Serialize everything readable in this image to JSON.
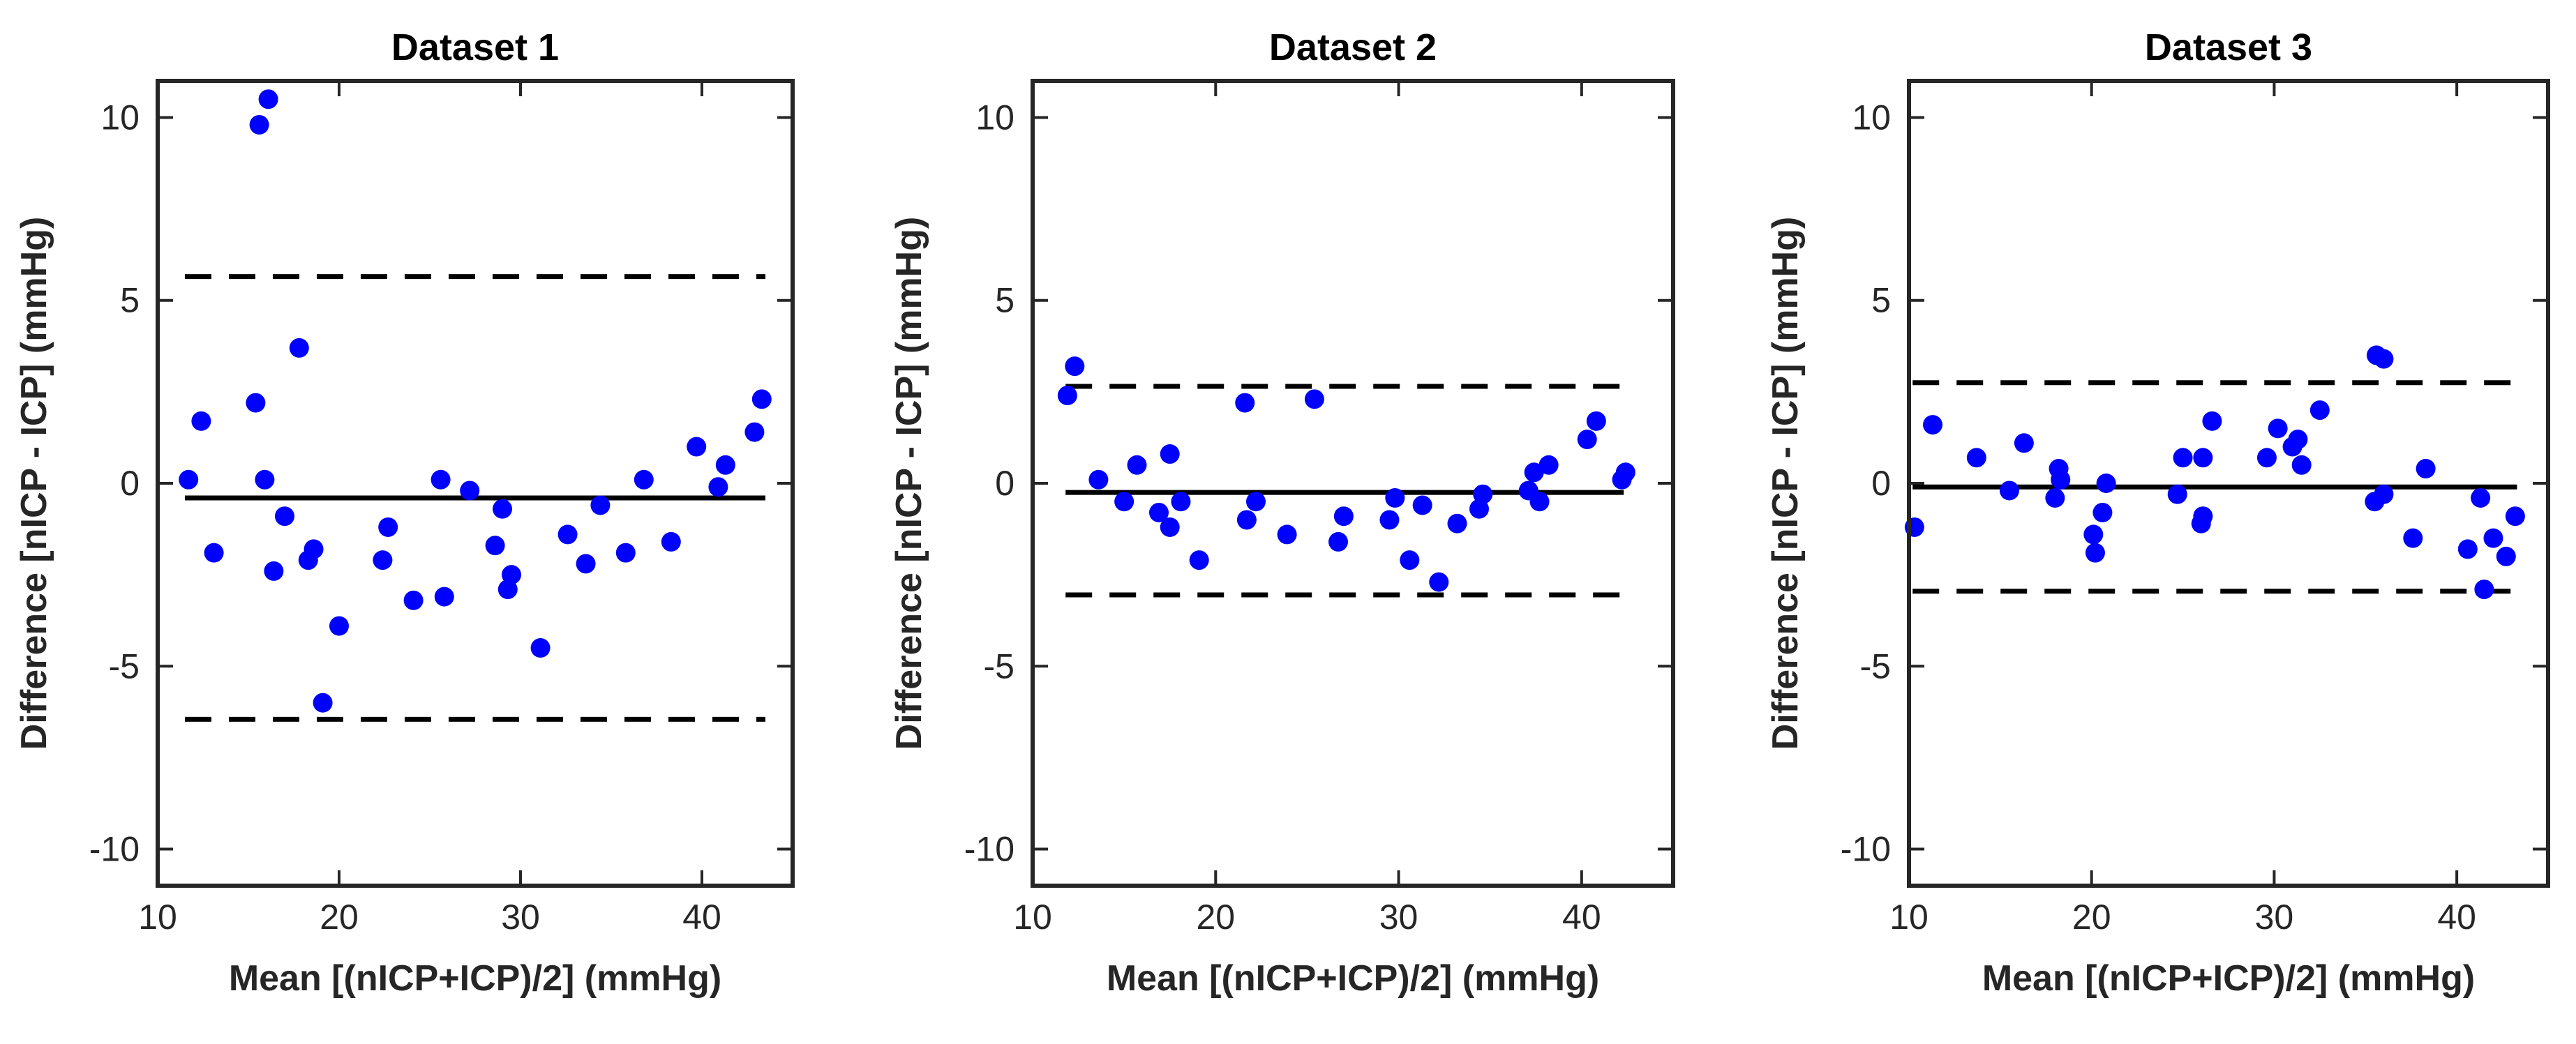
{
  "chart_data": [
    {
      "type": "scatter",
      "title": "Dataset 1",
      "xlabel": "Mean [(nICP+ICP)/2] (mmHg)",
      "ylabel": "Difference [nICP - ICP] (mmHg)",
      "xlim": [
        10,
        45
      ],
      "ylim": [
        -11,
        11
      ],
      "xticks": [
        10,
        20,
        30,
        40
      ],
      "yticks": [
        -10,
        -5,
        0,
        5,
        10
      ],
      "xtick_labels": [
        "10",
        "20",
        "30",
        "40"
      ],
      "ytick_labels": [
        "-10",
        "-5",
        "0",
        "5",
        "10"
      ],
      "mean_bias": {
        "value": -0.4,
        "x_range": [
          11.5,
          43.5
        ]
      },
      "limits_of_agreement": [
        {
          "value": 5.65,
          "x_range": [
            11.5,
            43.5
          ]
        },
        {
          "value": -6.45,
          "x_range": [
            11.5,
            43.5
          ]
        }
      ],
      "marker_color": "#0000ff",
      "points": [
        {
          "x": 11.7,
          "y": 0.1
        },
        {
          "x": 12.4,
          "y": 1.7
        },
        {
          "x": 13.1,
          "y": -1.9
        },
        {
          "x": 15.6,
          "y": 9.8
        },
        {
          "x": 16.1,
          "y": 10.5
        },
        {
          "x": 15.4,
          "y": 2.2
        },
        {
          "x": 15.9,
          "y": 0.1
        },
        {
          "x": 16.4,
          "y": -2.4
        },
        {
          "x": 17.0,
          "y": -0.9
        },
        {
          "x": 17.8,
          "y": 3.7
        },
        {
          "x": 18.3,
          "y": -2.1
        },
        {
          "x": 18.6,
          "y": -1.8
        },
        {
          "x": 19.1,
          "y": -6.0
        },
        {
          "x": 20.0,
          "y": -3.9
        },
        {
          "x": 22.4,
          "y": -2.1
        },
        {
          "x": 22.7,
          "y": -1.2
        },
        {
          "x": 24.1,
          "y": -3.2
        },
        {
          "x": 25.6,
          "y": 0.1
        },
        {
          "x": 25.8,
          "y": -3.1
        },
        {
          "x": 27.2,
          "y": -0.2
        },
        {
          "x": 28.6,
          "y": -1.7
        },
        {
          "x": 29.0,
          "y": -0.7
        },
        {
          "x": 29.3,
          "y": -2.9
        },
        {
          "x": 29.5,
          "y": -2.5
        },
        {
          "x": 31.1,
          "y": -4.5
        },
        {
          "x": 32.6,
          "y": -1.4
        },
        {
          "x": 33.6,
          "y": -2.2
        },
        {
          "x": 34.4,
          "y": -0.6
        },
        {
          "x": 35.8,
          "y": -1.9
        },
        {
          "x": 36.8,
          "y": 0.1
        },
        {
          "x": 38.3,
          "y": -1.6
        },
        {
          "x": 39.7,
          "y": 1.0
        },
        {
          "x": 40.9,
          "y": -0.1
        },
        {
          "x": 41.3,
          "y": 0.5
        },
        {
          "x": 42.9,
          "y": 1.4
        },
        {
          "x": 43.3,
          "y": 2.3
        }
      ]
    },
    {
      "type": "scatter",
      "title": "Dataset 2",
      "xlabel": "Mean [(nICP+ICP)/2] (mmHg)",
      "ylabel": "Difference [nICP - ICP] (mmHg)",
      "xlim": [
        10,
        45
      ],
      "ylim": [
        -11,
        11
      ],
      "xticks": [
        10,
        20,
        30,
        40
      ],
      "yticks": [
        -10,
        -5,
        0,
        5,
        10
      ],
      "xtick_labels": [
        "10",
        "20",
        "30",
        "40"
      ],
      "ytick_labels": [
        "-10",
        "-5",
        "0",
        "5",
        "10"
      ],
      "mean_bias": {
        "value": -0.25,
        "x_range": [
          11.8,
          42.3
        ]
      },
      "limits_of_agreement": [
        {
          "value": 2.65,
          "x_range": [
            11.8,
            42.3
          ]
        },
        {
          "value": -3.05,
          "x_range": [
            11.8,
            42.3
          ]
        }
      ],
      "marker_color": "#0000ff",
      "points": [
        {
          "x": 11.9,
          "y": 2.4
        },
        {
          "x": 12.3,
          "y": 3.2
        },
        {
          "x": 13.6,
          "y": 0.1
        },
        {
          "x": 15.0,
          "y": -0.5
        },
        {
          "x": 15.7,
          "y": 0.5
        },
        {
          "x": 16.9,
          "y": -0.8
        },
        {
          "x": 17.5,
          "y": -1.2
        },
        {
          "x": 17.5,
          "y": 0.8
        },
        {
          "x": 18.1,
          "y": -0.5
        },
        {
          "x": 19.1,
          "y": -2.1
        },
        {
          "x": 21.6,
          "y": 2.2
        },
        {
          "x": 21.7,
          "y": -1.0
        },
        {
          "x": 22.2,
          "y": -0.5
        },
        {
          "x": 23.9,
          "y": -1.4
        },
        {
          "x": 25.4,
          "y": 2.3
        },
        {
          "x": 26.7,
          "y": -1.6
        },
        {
          "x": 27.0,
          "y": -0.9
        },
        {
          "x": 29.5,
          "y": -1.0
        },
        {
          "x": 29.8,
          "y": -0.4
        },
        {
          "x": 30.6,
          "y": -2.1
        },
        {
          "x": 31.3,
          "y": -0.6
        },
        {
          "x": 32.2,
          "y": -2.7
        },
        {
          "x": 33.2,
          "y": -1.1
        },
        {
          "x": 34.4,
          "y": -0.7
        },
        {
          "x": 34.6,
          "y": -0.3
        },
        {
          "x": 37.1,
          "y": -0.2
        },
        {
          "x": 37.4,
          "y": 0.3
        },
        {
          "x": 37.7,
          "y": -0.5
        },
        {
          "x": 38.2,
          "y": 0.5
        },
        {
          "x": 40.3,
          "y": 1.2
        },
        {
          "x": 40.8,
          "y": 1.7
        },
        {
          "x": 42.2,
          "y": 0.1
        },
        {
          "x": 42.4,
          "y": 0.3
        }
      ]
    },
    {
      "type": "scatter",
      "title": "Dataset 3",
      "xlabel": "Mean [(nICP+ICP)/2] (mmHg)",
      "ylabel": "Difference [nICP - ICP] (mmHg)",
      "xlim": [
        10,
        45
      ],
      "ylim": [
        -11,
        11
      ],
      "xticks": [
        10,
        20,
        30,
        40
      ],
      "yticks": [
        -10,
        -5,
        0,
        5,
        10
      ],
      "xtick_labels": [
        "10",
        "20",
        "30",
        "40"
      ],
      "ytick_labels": [
        "-10",
        "-5",
        "0",
        "5",
        "10"
      ],
      "mean_bias": {
        "value": -0.1,
        "x_range": [
          10.2,
          43.3
        ]
      },
      "limits_of_agreement": [
        {
          "value": 2.75,
          "x_range": [
            10.2,
            43.3
          ]
        },
        {
          "value": -2.95,
          "x_range": [
            10.2,
            43.3
          ]
        }
      ],
      "marker_color": "#0000ff",
      "points": [
        {
          "x": 10.3,
          "y": -1.2
        },
        {
          "x": 11.3,
          "y": 1.6
        },
        {
          "x": 13.7,
          "y": 0.7
        },
        {
          "x": 15.5,
          "y": -0.2
        },
        {
          "x": 16.3,
          "y": 1.1
        },
        {
          "x": 18.0,
          "y": -0.4
        },
        {
          "x": 18.2,
          "y": 0.4
        },
        {
          "x": 18.3,
          "y": 0.1
        },
        {
          "x": 20.1,
          "y": -1.4
        },
        {
          "x": 20.2,
          "y": -1.9
        },
        {
          "x": 20.6,
          "y": -0.8
        },
        {
          "x": 20.8,
          "y": 0.0
        },
        {
          "x": 24.7,
          "y": -0.3
        },
        {
          "x": 25.0,
          "y": 0.7
        },
        {
          "x": 26.0,
          "y": -1.1
        },
        {
          "x": 26.1,
          "y": -0.9
        },
        {
          "x": 26.1,
          "y": 0.7
        },
        {
          "x": 26.6,
          "y": 1.7
        },
        {
          "x": 29.6,
          "y": 0.7
        },
        {
          "x": 30.2,
          "y": 1.5
        },
        {
          "x": 31.0,
          "y": 1.0
        },
        {
          "x": 31.3,
          "y": 1.2
        },
        {
          "x": 31.5,
          "y": 0.5
        },
        {
          "x": 32.5,
          "y": 2.0
        },
        {
          "x": 35.5,
          "y": -0.5
        },
        {
          "x": 35.6,
          "y": 3.5
        },
        {
          "x": 36.0,
          "y": 3.4
        },
        {
          "x": 36.0,
          "y": -0.3
        },
        {
          "x": 37.6,
          "y": -1.5
        },
        {
          "x": 38.3,
          "y": 0.4
        },
        {
          "x": 40.6,
          "y": -1.8
        },
        {
          "x": 41.3,
          "y": -0.4
        },
        {
          "x": 41.5,
          "y": -2.9
        },
        {
          "x": 42.0,
          "y": -1.5
        },
        {
          "x": 42.7,
          "y": -2.0
        },
        {
          "x": 43.2,
          "y": -0.9
        }
      ]
    }
  ]
}
